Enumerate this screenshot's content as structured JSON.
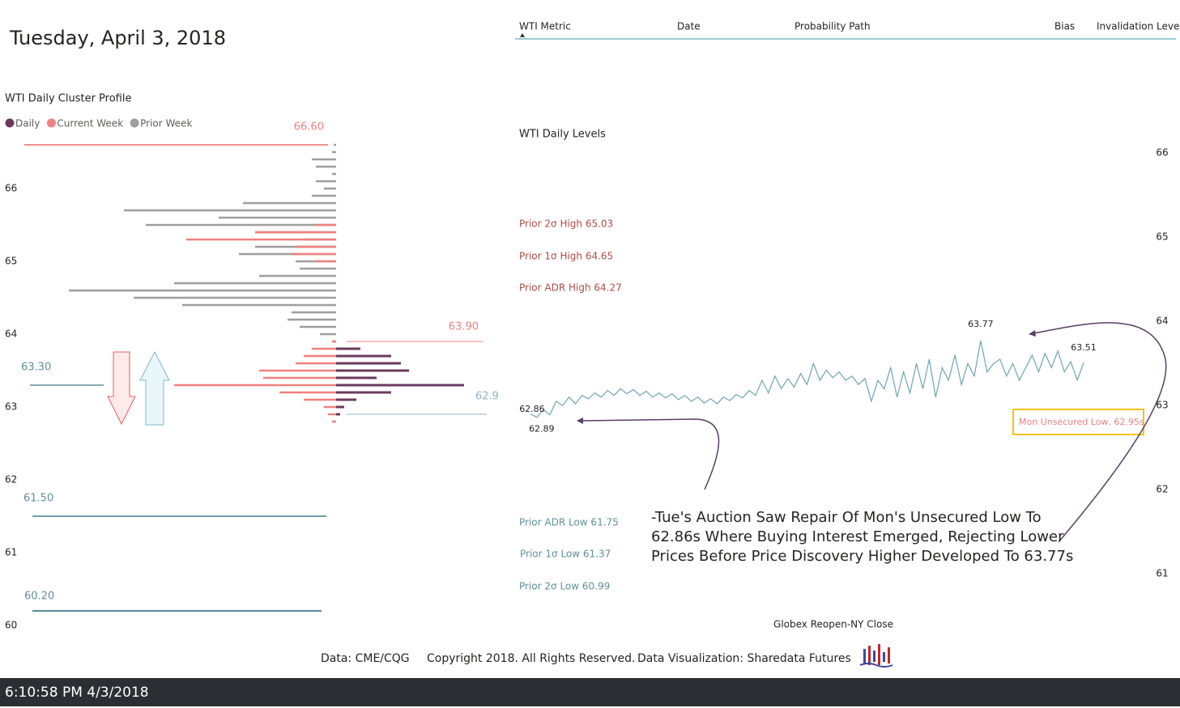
{
  "header": {
    "date": "Tuesday, April 3, 2018"
  },
  "table": {
    "columns": [
      "WTI Metric",
      "Date",
      "Probability Path",
      "Bias",
      "Invalidation Level"
    ]
  },
  "chart_data": [
    {
      "type": "bar",
      "orientation": "horizontal",
      "title": "WTI Daily Cluster Profile",
      "ylim": [
        59.9,
        66.8
      ],
      "yticks": [
        60,
        61,
        62,
        63,
        64,
        65,
        66
      ],
      "y": [
        66.6,
        66.5,
        66.4,
        66.3,
        66.2,
        66.1,
        66.0,
        65.9,
        65.8,
        65.7,
        65.6,
        65.5,
        65.4,
        65.3,
        65.2,
        65.1,
        65.0,
        64.9,
        64.8,
        64.7,
        64.6,
        64.5,
        64.4,
        64.3,
        64.2,
        64.1,
        64.0,
        63.9,
        63.8,
        63.7,
        63.6,
        63.5,
        63.4,
        63.3,
        63.2,
        63.1,
        63.0,
        62.9,
        62.8
      ],
      "series": [
        {
          "name": "Prior Week",
          "color": "#9e9e9e",
          "side": "left",
          "values": [
            3,
            5,
            30,
            25,
            5,
            25,
            15,
            30,
            115,
            262,
            145,
            235,
            100,
            40,
            100,
            120,
            50,
            45,
            95,
            200,
            330,
            250,
            190,
            55,
            60,
            45,
            20,
            5,
            0,
            0,
            0,
            0,
            0,
            0,
            0,
            0,
            0,
            0,
            0
          ]
        },
        {
          "name": "Current Week",
          "color": "#f08080",
          "side": "left",
          "values": [
            0,
            0,
            0,
            0,
            0,
            0,
            0,
            0,
            0,
            0,
            0,
            25,
            100,
            185,
            50,
            55,
            25,
            0,
            0,
            0,
            0,
            0,
            0,
            0,
            0,
            0,
            0,
            5,
            30,
            40,
            50,
            95,
            90,
            200,
            70,
            40,
            15,
            10,
            5
          ]
        },
        {
          "name": "Daily",
          "color": "#6b3a5e",
          "side": "right",
          "values": [
            0,
            0,
            0,
            0,
            0,
            0,
            0,
            0,
            0,
            0,
            0,
            0,
            0,
            0,
            0,
            0,
            0,
            0,
            0,
            0,
            0,
            0,
            0,
            0,
            0,
            0,
            0,
            0,
            30,
            68,
            80,
            90,
            50,
            158,
            68,
            25,
            10,
            5,
            0
          ]
        }
      ],
      "legend_order": [
        "Daily",
        "Current Week",
        "Prior Week"
      ],
      "reference_lines": [
        {
          "value": 66.6,
          "label": "66.60",
          "color": "#f08080"
        },
        {
          "value": 63.9,
          "label": "63.90",
          "color": "#f08080"
        },
        {
          "value": 63.3,
          "label": "63.30",
          "color": "#5f8f9c"
        },
        {
          "value": 62.9,
          "label": "62.9",
          "color": "#8fb4c2"
        },
        {
          "value": 61.5,
          "label": "61.50",
          "color": "#5f8f9c"
        },
        {
          "value": 60.2,
          "label": "60.20",
          "color": "#5f8f9c"
        }
      ]
    },
    {
      "type": "line",
      "title": "WTI Daily Levels",
      "xlabel": "Globex Reopen-NY Close",
      "ylim": [
        60.8,
        66.3
      ],
      "yticks": [
        61,
        62,
        63,
        64,
        65,
        66
      ],
      "series": [
        {
          "color": "#6fa5b0",
          "values": [
            62.9,
            62.86,
            62.95,
            62.89,
            63.05,
            63.0,
            63.1,
            63.02,
            63.12,
            63.08,
            63.15,
            63.1,
            63.18,
            63.12,
            63.2,
            63.14,
            63.19,
            63.12,
            63.17,
            63.1,
            63.15,
            63.09,
            63.14,
            63.07,
            63.12,
            63.05,
            63.1,
            63.03,
            63.08,
            63.02,
            63.1,
            63.06,
            63.13,
            63.09,
            63.18,
            63.12,
            63.3,
            63.15,
            63.35,
            63.2,
            63.32,
            63.22,
            63.38,
            63.25,
            63.5,
            63.3,
            63.42,
            63.33,
            63.4,
            63.3,
            63.35,
            63.25,
            63.32,
            63.05,
            63.3,
            63.2,
            63.45,
            63.1,
            63.4,
            63.15,
            63.5,
            63.2,
            63.55,
            63.1,
            63.45,
            63.3,
            63.6,
            63.25,
            63.5,
            63.35,
            63.77,
            63.4,
            63.5,
            63.55,
            63.35,
            63.5,
            63.3,
            63.45,
            63.6,
            63.4,
            63.62,
            63.45,
            63.65,
            63.4,
            63.52,
            63.3,
            63.51
          ]
        }
      ],
      "point_labels": [
        62.86,
        62.89,
        63.77,
        63.51
      ],
      "level_labels": [
        {
          "label": "Prior 2σ High 65.03",
          "color": "#b04a4a"
        },
        {
          "label": "Prior 1σ High 64.65",
          "color": "#b04a4a"
        },
        {
          "label": "Prior ADR High 64.27",
          "color": "#b04a4a"
        },
        {
          "label": "Prior ADR Low 61.75",
          "color": "#5f8f9c"
        },
        {
          "label": "Prior 1σ Low 61.37",
          "color": "#5f8f9c"
        },
        {
          "label": "Prior 2σ Low 60.99",
          "color": "#5f8f9c"
        }
      ],
      "callout": "Mon Unsecured Low, 62.95s",
      "annotation": [
        "-Tue's Auction Saw Repair Of Mon's Unsecured Low To",
        "62.86s Where Buying Interest Emerged, Rejecting Lower",
        "Prices Before Price Discovery Higher Developed To 63.77s"
      ]
    }
  ],
  "footer": [
    "Data: CME/CQG",
    "Copyright 2018. All Rights Reserved.",
    "Data Visualization: Sharedata Futures"
  ],
  "status_bar": "6:10:58 PM 4/3/2018"
}
